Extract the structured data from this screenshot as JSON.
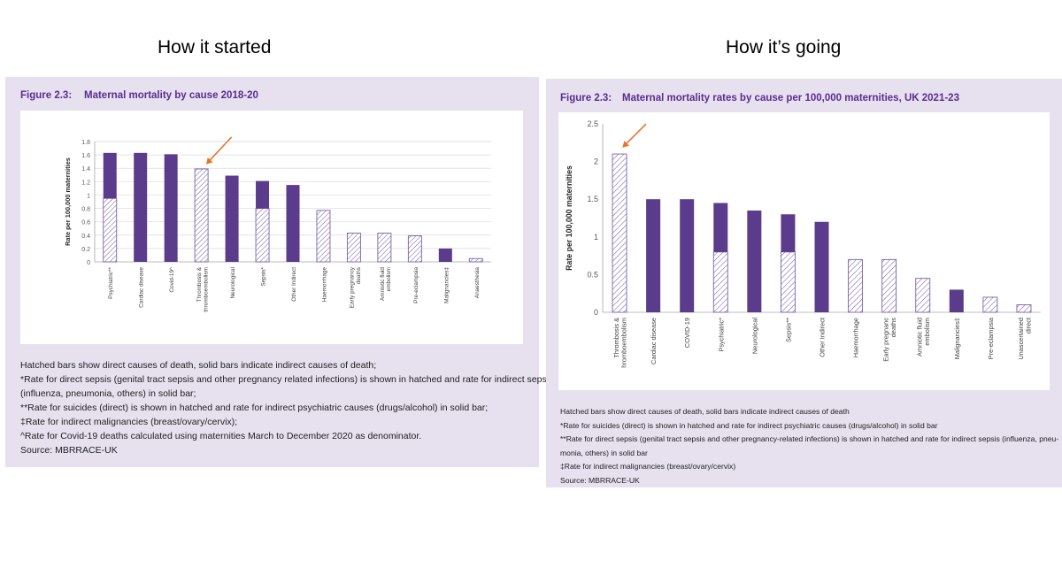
{
  "headings": {
    "left": "How it started",
    "right": "How it’s going"
  },
  "colors": {
    "solid": "#5b3b8c",
    "hatch": "#7a63a8",
    "panel": "#e6e0ef",
    "title": "#5b2d90",
    "arrow": "#e8742a"
  },
  "left": {
    "figure_number": "Figure 2.3:",
    "figure_title": "Maternal mortality by cause 2018-20",
    "notes": [
      "Hatched bars show direct causes of death, solid bars indicate indirect causes of death;",
      "*Rate for direct sepsis (genital tract sepsis and other pregnancy related infections) is shown in hatched and rate for indirect sepsis",
      "(influenza, pneumonia, others) in solid bar;",
      "**Rate for suicides (direct) is shown in hatched and rate for indirect psychiatric causes (drugs/alcohol) in solid bar;",
      "‡Rate for indirect malignancies (breast/ovary/cervix);",
      "^Rate for Covid-19 deaths calculated using maternities March to December 2020 as denominator.",
      "Source: MBRRACE-UK"
    ]
  },
  "right": {
    "figure_number": "Figure 2.3:",
    "figure_title": "Maternal mortality rates by cause per 100,000 maternities, UK 2021-23",
    "notes": [
      "Hatched bars show direct causes of death, solid bars indicate indirect causes of death",
      "*Rate for suicides (direct) is shown in hatched and rate for indirect psychiatric causes (drugs/alcohol) in solid bar",
      "**Rate for direct sepsis (genital tract sepsis and other pregnancy-related infections) is shown in hatched and rate for indirect sepsis (influenza, pneu-",
      "monia, others) in solid bar",
      "‡Rate for indirect malignancies (breast/ovary/cervix)",
      "Source: MBRRACE-UK"
    ]
  },
  "chart_data": [
    {
      "type": "bar",
      "stacked": true,
      "title": "Maternal mortality by cause 2018-20",
      "ylabel": "Rate per 100,000 maternities",
      "ylim": [
        0,
        1.8
      ],
      "yticks": [
        "0",
        "0.2",
        "0.4",
        "0.6",
        "0.8",
        "1",
        "1.2",
        "1.4",
        "1.6",
        "1.8"
      ],
      "categories": [
        [
          "Psychiatric**"
        ],
        [
          "Cardiac disease"
        ],
        [
          "Covid-19^"
        ],
        [
          "Thrombosis &",
          "thromboembolism"
        ],
        [
          "Neurological"
        ],
        [
          "Sepsis*"
        ],
        [
          "Other Indirect"
        ],
        [
          "Haemorrhage"
        ],
        [
          "Early pregnancy",
          "deaths"
        ],
        [
          "Amniotic fluid",
          "embolism"
        ],
        [
          "Pre-eclampsia"
        ],
        [
          "Malignancies‡"
        ],
        [
          "Anaesthesia"
        ]
      ],
      "series": [
        {
          "name": "Direct (hatched)",
          "values": [
            0.95,
            0,
            0,
            1.39,
            0,
            0.8,
            0,
            0.77,
            0.43,
            0.43,
            0.39,
            0,
            0.05
          ]
        },
        {
          "name": "Indirect (solid)",
          "values": [
            0.68,
            1.63,
            1.61,
            0,
            1.29,
            0.41,
            1.15,
            0,
            0,
            0,
            0,
            0.2,
            0
          ]
        }
      ],
      "annotation": {
        "type": "arrow",
        "target_category": "Thrombosis & thromboembolism"
      }
    },
    {
      "type": "bar",
      "stacked": true,
      "title": "Maternal mortality rates by cause per 100,000 maternities, UK 2021-23",
      "ylabel": "Rate per 100,000 maternities",
      "ylim": [
        0,
        2.5
      ],
      "yticks": [
        "0",
        "0.5",
        "1",
        "1.5",
        "2",
        "2.5"
      ],
      "categories": [
        [
          "Thrombosis &",
          "hromboembolism"
        ],
        [
          "Cardiac disease"
        ],
        [
          "COVID-19"
        ],
        [
          "Psychiatric*"
        ],
        [
          "Neurological"
        ],
        [
          "Sepsis**"
        ],
        [
          "Other Indirect"
        ],
        [
          "Haemorrhage"
        ],
        [
          "Early pregnanc",
          "deaths"
        ],
        [
          "Amniotic fluid",
          "embolism"
        ],
        [
          "Malignancies‡"
        ],
        [
          "Pre-eclampsia"
        ],
        [
          "Unascertained",
          "direct"
        ]
      ],
      "series": [
        {
          "name": "Direct (hatched)",
          "values": [
            2.1,
            0,
            0,
            0.8,
            0,
            0.8,
            0,
            0.7,
            0.7,
            0.45,
            0,
            0.2,
            0.1
          ]
        },
        {
          "name": "Indirect (solid)",
          "values": [
            0,
            1.5,
            1.5,
            0.65,
            1.35,
            0.5,
            1.2,
            0,
            0,
            0,
            0.3,
            0,
            0
          ]
        }
      ],
      "annotation": {
        "type": "arrow",
        "target_category": "Thrombosis & hromboembolism"
      }
    }
  ]
}
